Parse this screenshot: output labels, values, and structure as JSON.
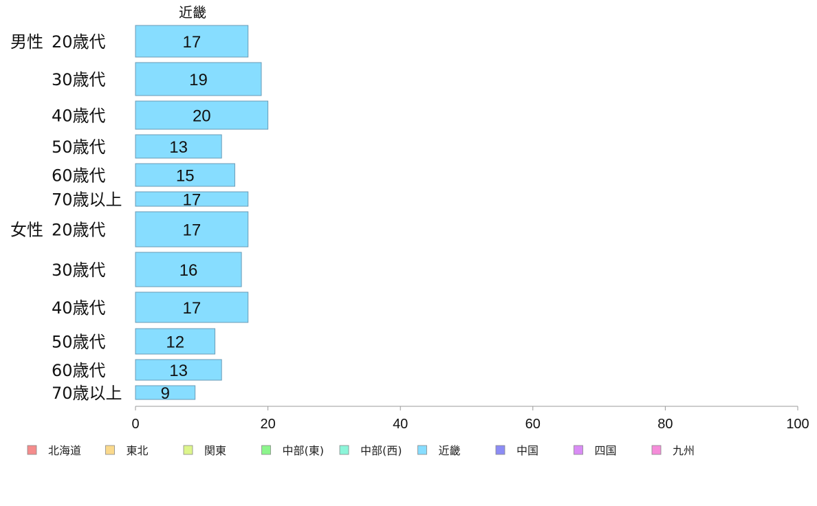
{
  "chart_data": {
    "type": "bar",
    "orientation": "horizontal",
    "title": "近畿",
    "groups": [
      {
        "label": "男性",
        "categories": [
          "20歳代",
          "30歳代",
          "40歳代",
          "50歳代",
          "60歳代",
          "70歳以上"
        ],
        "values": [
          17,
          19,
          20,
          13,
          15,
          17
        ]
      },
      {
        "label": "女性",
        "categories": [
          "20歳代",
          "30歳代",
          "40歳代",
          "50歳代",
          "60歳代",
          "70歳以上"
        ],
        "values": [
          17,
          16,
          17,
          12,
          13,
          9
        ]
      }
    ],
    "series": [
      {
        "name": "近畿",
        "color": "#87DDFF"
      }
    ],
    "xlim": [
      0,
      100
    ],
    "xticks": [
      0,
      20,
      40,
      60,
      80,
      100
    ],
    "legend": {
      "placement": "bottom",
      "items": [
        {
          "name": "北海道",
          "color": "#F58C8C"
        },
        {
          "name": "東北",
          "color": "#FAD98C"
        },
        {
          "name": "関東",
          "color": "#DDF58C"
        },
        {
          "name": "中部(東)",
          "color": "#8CF58C"
        },
        {
          "name": "中部(西)",
          "color": "#8CF5D9"
        },
        {
          "name": "近畿",
          "color": "#87DDFF"
        },
        {
          "name": "中国",
          "color": "#8C8CF5"
        },
        {
          "name": "四国",
          "color": "#D98CF5"
        },
        {
          "name": "九州",
          "color": "#F58CD9"
        }
      ]
    }
  }
}
